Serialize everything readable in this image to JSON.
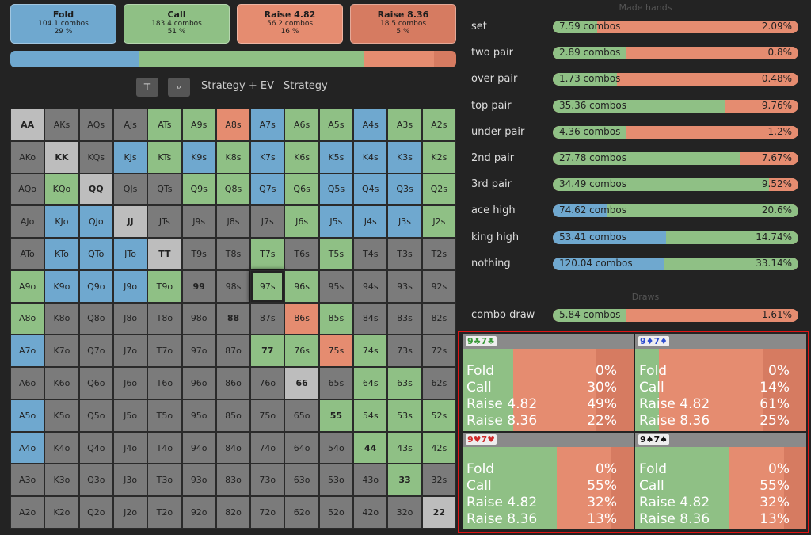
{
  "actions": [
    {
      "name": "Fold",
      "combos": "104.1 combos",
      "pct": {
        "value": 29,
        "label": "29 %"
      },
      "color": "#6fa8cf"
    },
    {
      "name": "Call",
      "combos": "183.4 combos",
      "pct": {
        "value": 51,
        "label": "51 %"
      },
      "color": "#8fc085"
    },
    {
      "name": "Raise 4.82",
      "combos": "56.2 combos",
      "pct": {
        "value": 16,
        "label": "16 %"
      },
      "color": "#e58c70"
    },
    {
      "name": "Raise 8.36",
      "combos": "18.5 combos",
      "pct": {
        "value": 5,
        "label": "5 %"
      },
      "color": "#d67b61"
    }
  ],
  "toolbar": {
    "tabs": [
      "Strategy + EV",
      "Strategy"
    ]
  },
  "palette": {
    "g": "#8fc085",
    "b": "#6fa8cf",
    "r": "#e58c70",
    "n": "#7b7b7b",
    "p": "#bdbdbd"
  },
  "grid": {
    "selected": "97s",
    "hands": [
      [
        "AA",
        "AKs",
        "AQs",
        "AJs",
        "ATs",
        "A9s",
        "A8s",
        "A7s",
        "A6s",
        "A5s",
        "A4s",
        "A3s",
        "A2s"
      ],
      [
        "AKo",
        "KK",
        "KQs",
        "KJs",
        "KTs",
        "K9s",
        "K8s",
        "K7s",
        "K6s",
        "K5s",
        "K4s",
        "K3s",
        "K2s"
      ],
      [
        "AQo",
        "KQo",
        "QQ",
        "QJs",
        "QTs",
        "Q9s",
        "Q8s",
        "Q7s",
        "Q6s",
        "Q5s",
        "Q4s",
        "Q3s",
        "Q2s"
      ],
      [
        "AJo",
        "KJo",
        "QJo",
        "JJ",
        "JTs",
        "J9s",
        "J8s",
        "J7s",
        "J6s",
        "J5s",
        "J4s",
        "J3s",
        "J2s"
      ],
      [
        "ATo",
        "KTo",
        "QTo",
        "JTo",
        "TT",
        "T9s",
        "T8s",
        "T7s",
        "T6s",
        "T5s",
        "T4s",
        "T3s",
        "T2s"
      ],
      [
        "A9o",
        "K9o",
        "Q9o",
        "J9o",
        "T9o",
        "99",
        "98s",
        "97s",
        "96s",
        "95s",
        "94s",
        "93s",
        "92s"
      ],
      [
        "A8o",
        "K8o",
        "Q8o",
        "J8o",
        "T8o",
        "98o",
        "88",
        "87s",
        "86s",
        "85s",
        "84s",
        "83s",
        "82s"
      ],
      [
        "A7o",
        "K7o",
        "Q7o",
        "J7o",
        "T7o",
        "97o",
        "87o",
        "77",
        "76s",
        "75s",
        "74s",
        "73s",
        "72s"
      ],
      [
        "A6o",
        "K6o",
        "Q6o",
        "J6o",
        "T6o",
        "96o",
        "86o",
        "76o",
        "66",
        "65s",
        "64s",
        "63s",
        "62s"
      ],
      [
        "A5o",
        "K5o",
        "Q5o",
        "J5o",
        "T5o",
        "95o",
        "85o",
        "75o",
        "65o",
        "55",
        "54s",
        "53s",
        "52s"
      ],
      [
        "A4o",
        "K4o",
        "Q4o",
        "J4o",
        "T4o",
        "94o",
        "84o",
        "74o",
        "64o",
        "54o",
        "44",
        "43s",
        "42s"
      ],
      [
        "A3o",
        "K3o",
        "Q3o",
        "J3o",
        "T3o",
        "93o",
        "83o",
        "73o",
        "63o",
        "53o",
        "43o",
        "33",
        "32s"
      ],
      [
        "A2o",
        "K2o",
        "Q2o",
        "J2o",
        "T2o",
        "92o",
        "82o",
        "72o",
        "62o",
        "52o",
        "42o",
        "32o",
        "22"
      ]
    ],
    "fills": [
      [
        "p",
        "n",
        "n",
        "n",
        "g",
        "g",
        "r",
        "b",
        "g",
        "g",
        "b",
        "g",
        "g"
      ],
      [
        "n",
        "p",
        "n",
        "b",
        "g",
        "b",
        "g",
        "b",
        "g",
        "b",
        "b",
        "b",
        "g"
      ],
      [
        "n",
        "g",
        "p",
        "n",
        "n",
        "g",
        "g",
        "b",
        "g",
        "b",
        "b",
        "b",
        "g"
      ],
      [
        "n",
        "b",
        "b",
        "p",
        "n",
        "n",
        "n",
        "n",
        "g",
        "b",
        "b",
        "b",
        "g"
      ],
      [
        "n",
        "b",
        "b",
        "b",
        "p",
        "n",
        "n",
        "g",
        "n",
        "g",
        "n",
        "n",
        "n"
      ],
      [
        "g",
        "b",
        "b",
        "b",
        "g",
        "n",
        "n",
        "g",
        "g",
        "n",
        "n",
        "n",
        "n"
      ],
      [
        "g",
        "n",
        "n",
        "n",
        "n",
        "n",
        "n",
        "n",
        "r",
        "g",
        "n",
        "n",
        "n"
      ],
      [
        "b",
        "n",
        "n",
        "n",
        "n",
        "n",
        "n",
        "g",
        "g",
        "r",
        "g",
        "n",
        "n"
      ],
      [
        "n",
        "n",
        "n",
        "n",
        "n",
        "n",
        "n",
        "n",
        "p",
        "n",
        "g",
        "g",
        "n"
      ],
      [
        "b",
        "n",
        "n",
        "n",
        "n",
        "n",
        "n",
        "n",
        "n",
        "g",
        "g",
        "g",
        "g"
      ],
      [
        "b",
        "n",
        "n",
        "n",
        "n",
        "n",
        "n",
        "n",
        "n",
        "n",
        "g",
        "g",
        "g"
      ],
      [
        "n",
        "n",
        "n",
        "n",
        "n",
        "n",
        "n",
        "n",
        "n",
        "n",
        "n",
        "g",
        "n"
      ],
      [
        "n",
        "n",
        "n",
        "n",
        "n",
        "n",
        "n",
        "n",
        "n",
        "n",
        "n",
        "n",
        "p"
      ]
    ]
  },
  "made_hands": {
    "title": "Made hands",
    "rows": [
      {
        "name": "set",
        "combos": "7.59 combos",
        "pct": {
          "value": 2.09,
          "label": "2.09%"
        },
        "mix": [
          0,
          18,
          82
        ]
      },
      {
        "name": "two pair",
        "combos": "2.89 combos",
        "pct": {
          "value": 0.8,
          "label": "0.8%"
        },
        "mix": [
          0,
          30,
          70
        ]
      },
      {
        "name": "over pair",
        "combos": "1.73 combos",
        "pct": {
          "value": 0.48,
          "label": "0.48%"
        },
        "mix": [
          0,
          26,
          74
        ]
      },
      {
        "name": "top pair",
        "combos": "35.36 combos",
        "pct": {
          "value": 9.76,
          "label": "9.76%"
        },
        "mix": [
          0,
          70,
          30
        ]
      },
      {
        "name": "under pair",
        "combos": "4.36 combos",
        "pct": {
          "value": 1.2,
          "label": "1.2%"
        },
        "mix": [
          0,
          30,
          70
        ]
      },
      {
        "name": "2nd pair",
        "combos": "27.78 combos",
        "pct": {
          "value": 7.67,
          "label": "7.67%"
        },
        "mix": [
          0,
          76,
          24
        ]
      },
      {
        "name": "3rd pair",
        "combos": "34.49 combos",
        "pct": {
          "value": 9.52,
          "label": "9.52%"
        },
        "mix": [
          0,
          88,
          12
        ]
      },
      {
        "name": "ace high",
        "combos": "74.62 combos",
        "pct": {
          "value": 20.6,
          "label": "20.6%"
        },
        "mix": [
          22,
          78,
          0
        ]
      },
      {
        "name": "king high",
        "combos": "53.41 combos",
        "pct": {
          "value": 14.74,
          "label": "14.74%"
        },
        "mix": [
          46,
          54,
          0
        ]
      },
      {
        "name": "nothing",
        "combos": "120.04 combos",
        "pct": {
          "value": 33.14,
          "label": "33.14%"
        },
        "mix": [
          45,
          55,
          0
        ]
      }
    ]
  },
  "draws": {
    "title": "Draws",
    "rows": [
      {
        "name": "combo draw",
        "combos": "5.84 combos",
        "pct": {
          "value": 1.61,
          "label": "1.61%"
        },
        "mix": [
          0,
          30,
          70
        ]
      }
    ]
  },
  "combos": [
    {
      "title": "9♣7♣",
      "suit_color": "#3a9a3a",
      "rows": [
        {
          "name": "Fold",
          "pct": {
            "value": 0,
            "label": "0%"
          }
        },
        {
          "name": "Call",
          "pct": {
            "value": 30,
            "label": "30%"
          }
        },
        {
          "name": "Raise 4.82",
          "pct": {
            "value": 49,
            "label": "49%"
          }
        },
        {
          "name": "Raise 8.36",
          "pct": {
            "value": 22,
            "label": "22%"
          }
        }
      ]
    },
    {
      "title": "9♦7♦",
      "suit_color": "#2f4fd0",
      "rows": [
        {
          "name": "Fold",
          "pct": {
            "value": 0,
            "label": "0%"
          }
        },
        {
          "name": "Call",
          "pct": {
            "value": 14,
            "label": "14%"
          }
        },
        {
          "name": "Raise 4.82",
          "pct": {
            "value": 61,
            "label": "61%"
          }
        },
        {
          "name": "Raise 8.36",
          "pct": {
            "value": 25,
            "label": "25%"
          }
        }
      ]
    },
    {
      "title": "9♥7♥",
      "suit_color": "#d02a2a",
      "rows": [
        {
          "name": "Fold",
          "pct": {
            "value": 0,
            "label": "0%"
          }
        },
        {
          "name": "Call",
          "pct": {
            "value": 55,
            "label": "55%"
          }
        },
        {
          "name": "Raise 4.82",
          "pct": {
            "value": 32,
            "label": "32%"
          }
        },
        {
          "name": "Raise 8.36",
          "pct": {
            "value": 13,
            "label": "13%"
          }
        }
      ]
    },
    {
      "title": "9♠7♠",
      "suit_color": "#111111",
      "rows": [
        {
          "name": "Fold",
          "pct": {
            "value": 0,
            "label": "0%"
          }
        },
        {
          "name": "Call",
          "pct": {
            "value": 55,
            "label": "55%"
          }
        },
        {
          "name": "Raise 4.82",
          "pct": {
            "value": 32,
            "label": "32%"
          }
        },
        {
          "name": "Raise 8.36",
          "pct": {
            "value": 13,
            "label": "13%"
          }
        }
      ]
    }
  ]
}
